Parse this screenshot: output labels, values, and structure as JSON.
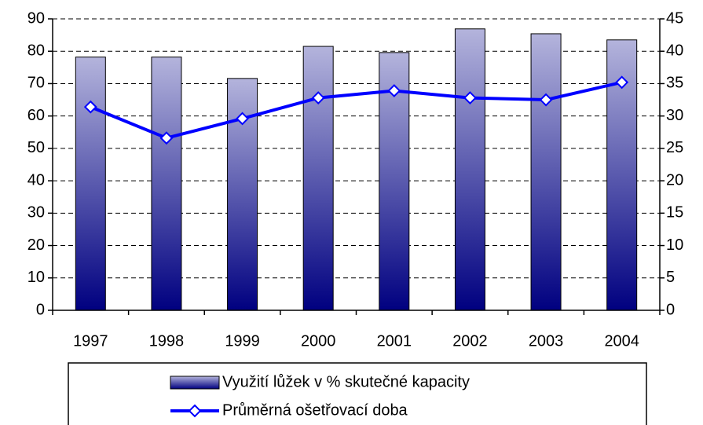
{
  "chart_data": {
    "type": "bar",
    "categories": [
      "1997",
      "1998",
      "1999",
      "2000",
      "2001",
      "2002",
      "2003",
      "2004"
    ],
    "series": [
      {
        "name": "Využití lůžek v % skutečné kapacity",
        "type": "bar",
        "color": "#000080",
        "values": [
          78.2,
          78.2,
          71.6,
          81.5,
          79.6,
          86.9,
          85.4,
          83.5
        ]
      },
      {
        "name": "Průměrná ošetřovací doba",
        "type": "line",
        "axis": "y2",
        "color": "#0000ff",
        "values": [
          31.4,
          26.6,
          29.6,
          32.8,
          33.9,
          32.8,
          32.5,
          35.2
        ]
      }
    ],
    "ylim": [
      0,
      90
    ],
    "yticks": [
      0,
      10,
      20,
      30,
      40,
      50,
      60,
      70,
      80,
      90
    ],
    "y2lim": [
      0,
      45
    ],
    "y2ticks": [
      0,
      5,
      10,
      15,
      20,
      25,
      30,
      35,
      40,
      45
    ],
    "grid": true,
    "legend": "bottom"
  }
}
